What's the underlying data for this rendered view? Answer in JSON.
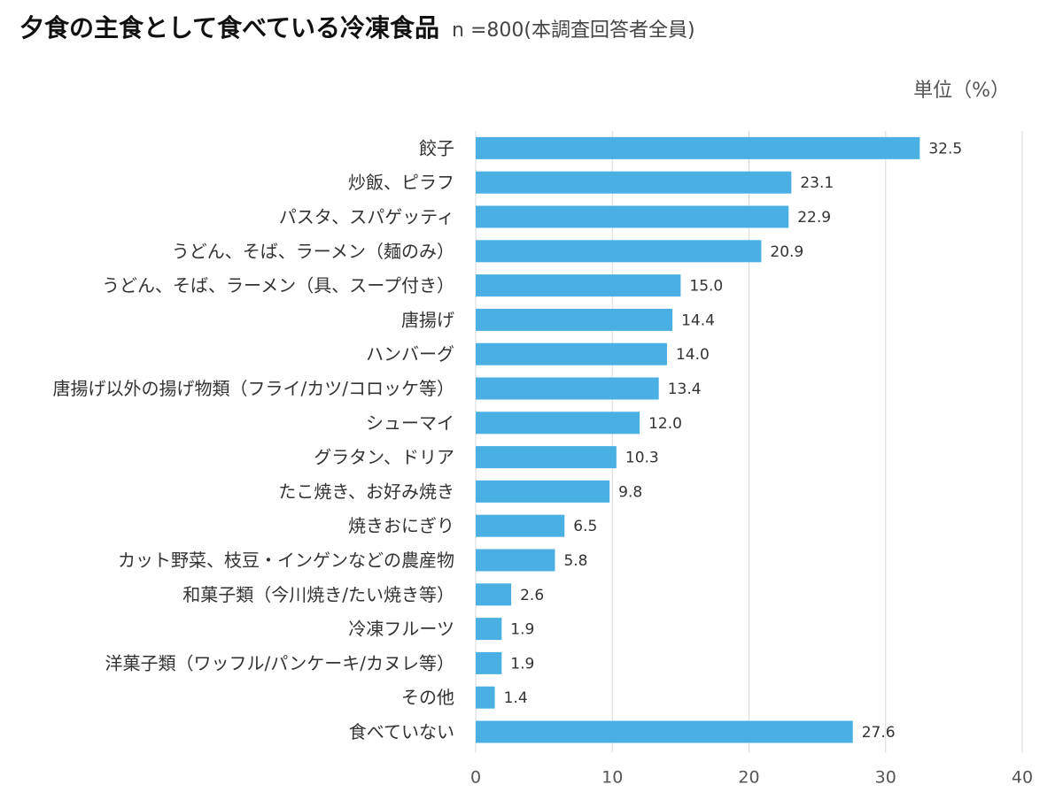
{
  "header": {
    "title": "夕食の主食として食べている冷凍食品",
    "subtitle": "n =800(本調査回答者全員)",
    "unit": "単位（%）"
  },
  "colors": {
    "bar": "#4ab0e3",
    "grid": "#d9d9d9"
  },
  "chart_data": {
    "type": "bar",
    "orientation": "horizontal",
    "title": "夕食の主食として食べている冷凍食品",
    "xlabel": "",
    "ylabel": "",
    "xlim": [
      0,
      40
    ],
    "xticks": [
      0,
      10,
      20,
      30,
      40
    ],
    "grid": true,
    "categories": [
      "餃子",
      "炒飯、ピラフ",
      "パスタ、スパゲッティ",
      "うどん、そば、ラーメン（麺のみ）",
      "うどん、そば、ラーメン（具、スープ付き）",
      "唐揚げ",
      "ハンバーグ",
      "唐揚げ以外の揚げ物類（フライ/カツ/コロッケ等）",
      "シューマイ",
      "グラタン、ドリア",
      "たこ焼き、お好み焼き",
      "焼きおにぎり",
      "カット野菜、枝豆・インゲンなどの農産物",
      "和菓子類（今川焼き/たい焼き等）",
      "冷凍フルーツ",
      "洋菓子類（ワッフル/パンケーキ/カヌレ等）",
      "その他",
      "食べていない"
    ],
    "values": [
      32.5,
      23.1,
      22.9,
      20.9,
      15.0,
      14.4,
      14.0,
      13.4,
      12.0,
      10.3,
      9.8,
      6.5,
      5.8,
      2.6,
      1.9,
      1.9,
      1.4,
      27.6
    ],
    "value_labels": [
      "32.5",
      "23.1",
      "22.9",
      "20.9",
      "15.0",
      "14.4",
      "14.0",
      "13.4",
      "12.0",
      "10.3",
      "9.8",
      "6.5",
      "5.8",
      "2.6",
      "1.9",
      "1.9",
      "1.4",
      "27.6"
    ]
  }
}
